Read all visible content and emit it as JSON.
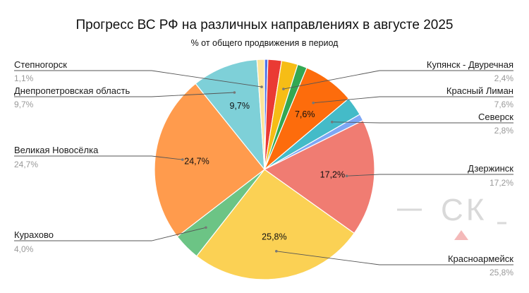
{
  "chart_data": {
    "type": "pie",
    "title": "Прогресс ВС РФ на различных направлениях в августе 2025",
    "subtitle": "% от общего продвижения в период",
    "slices": [
      {
        "name": "",
        "value": 0.5,
        "color": "#4f74e8"
      },
      {
        "name": "",
        "value": 2.0,
        "color": "#ea3a34"
      },
      {
        "name": "Купянск - Двуречная",
        "value": 2.4,
        "display": "2,4%",
        "color": "#f6bd16"
      },
      {
        "name": "",
        "value": 1.4,
        "color": "#33a853"
      },
      {
        "name": "Красный Лиман",
        "value": 7.6,
        "display": "7,6%",
        "inner": "7,6%",
        "color": "#fd6c0c"
      },
      {
        "name": "Северск",
        "value": 2.8,
        "display": "2,8%",
        "color": "#44bbc8"
      },
      {
        "name": "",
        "value": 1.0,
        "color": "#7ea7f4"
      },
      {
        "name": "Дзержинск",
        "value": 17.2,
        "display": "17,2%",
        "inner": "17,2%",
        "color": "#f07c72"
      },
      {
        "name": "Красноармейск",
        "value": 25.8,
        "display": "25,8%",
        "inner": "25,8%",
        "color": "#fbd154"
      },
      {
        "name": "Курахово",
        "value": 4.0,
        "display": "4,0%",
        "color": "#6cc485"
      },
      {
        "name": "Великая Новосёлка",
        "value": 24.7,
        "display": "24,7%",
        "inner": "24,7%",
        "color": "#ff9b4d"
      },
      {
        "name": "Днепропетровская область",
        "value": 9.7,
        "display": "9,7%",
        "inner": "9,7%",
        "color": "#7ed0d8"
      },
      {
        "name": "Степногорск",
        "value": 1.1,
        "display": "1,1%",
        "color": "#fce49a"
      }
    ]
  },
  "watermark": {
    "text": "СК",
    "color": "#d9d9d9",
    "accent": "#f4b9b9"
  }
}
